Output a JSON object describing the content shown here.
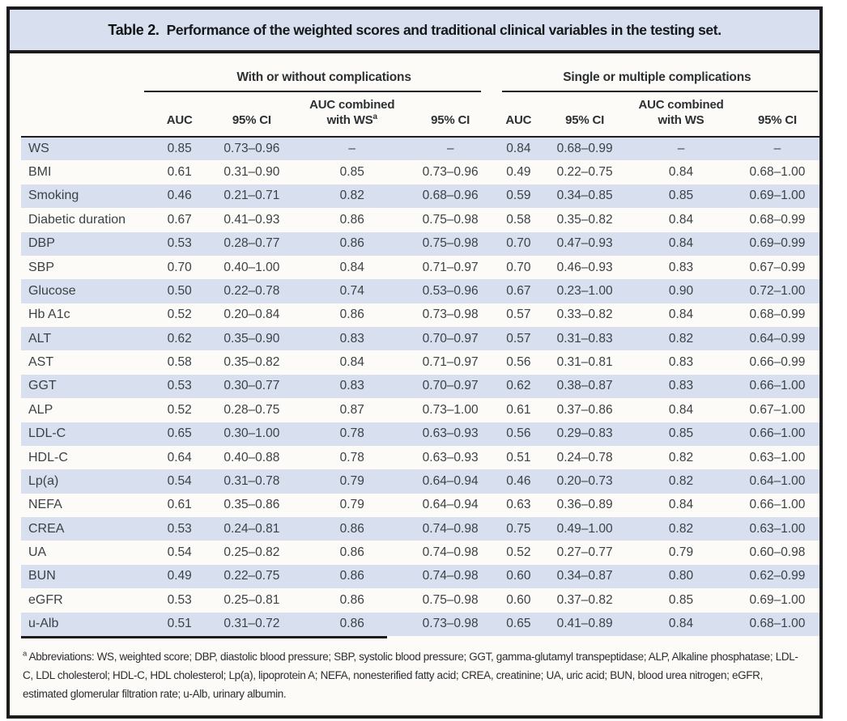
{
  "title": {
    "label": "Table 2.",
    "text": "Performance of the weighted scores and traditional clinical variables in the testing set."
  },
  "colors": {
    "band_blue": "#d8e0f0",
    "row_offwhite": "#fcfbf8",
    "border_black": "#1b1b1b",
    "text_dark": "#3c4145"
  },
  "table": {
    "group_headers": [
      {
        "label": "With or without complications"
      },
      {
        "label": "Single or multiple complications"
      }
    ],
    "sub_headers": [
      {
        "text": "AUC"
      },
      {
        "text": "95% CI"
      },
      {
        "line1": "AUC combined",
        "line2": "with WS",
        "sup": "a"
      },
      {
        "text": "95% CI"
      },
      {
        "text": "AUC"
      },
      {
        "text": "95% CI"
      },
      {
        "line1": "AUC combined",
        "line2": "with WS",
        "sup": ""
      },
      {
        "text": "95% CI"
      }
    ],
    "rows": [
      {
        "label": "WS",
        "values": [
          "0.85",
          "0.73–0.96",
          "–",
          "–",
          "0.84",
          "0.68–0.99",
          "–",
          "–"
        ]
      },
      {
        "label": "BMI",
        "values": [
          "0.61",
          "0.31–0.90",
          "0.85",
          "0.73–0.96",
          "0.49",
          "0.22–0.75",
          "0.84",
          "0.68–1.00"
        ]
      },
      {
        "label": "Smoking",
        "values": [
          "0.46",
          "0.21–0.71",
          "0.82",
          "0.68–0.96",
          "0.59",
          "0.34–0.85",
          "0.85",
          "0.69–1.00"
        ]
      },
      {
        "label": "Diabetic duration",
        "values": [
          "0.67",
          "0.41–0.93",
          "0.86",
          "0.75–0.98",
          "0.58",
          "0.35–0.82",
          "0.84",
          "0.68–0.99"
        ]
      },
      {
        "label": "DBP",
        "values": [
          "0.53",
          "0.28–0.77",
          "0.86",
          "0.75–0.98",
          "0.70",
          "0.47–0.93",
          "0.84",
          "0.69–0.99"
        ]
      },
      {
        "label": "SBP",
        "values": [
          "0.70",
          "0.40–1.00",
          "0.84",
          "0.71–0.97",
          "0.70",
          "0.46–0.93",
          "0.83",
          "0.67–0.99"
        ]
      },
      {
        "label": "Glucose",
        "values": [
          "0.50",
          "0.22–0.78",
          "0.74",
          "0.53–0.96",
          "0.67",
          "0.23–1.00",
          "0.90",
          "0.72–1.00"
        ]
      },
      {
        "label": "Hb A1c",
        "values": [
          "0.52",
          "0.20–0.84",
          "0.86",
          "0.73–0.98",
          "0.57",
          "0.33–0.82",
          "0.84",
          "0.68–0.99"
        ]
      },
      {
        "label": "ALT",
        "values": [
          "0.62",
          "0.35–0.90",
          "0.83",
          "0.70–0.97",
          "0.57",
          "0.31–0.83",
          "0.82",
          "0.64–0.99"
        ]
      },
      {
        "label": "AST",
        "values": [
          "0.58",
          "0.35–0.82",
          "0.84",
          "0.71–0.97",
          "0.56",
          "0.31–0.81",
          "0.83",
          "0.66–0.99"
        ]
      },
      {
        "label": "GGT",
        "values": [
          "0.53",
          "0.30–0.77",
          "0.83",
          "0.70–0.97",
          "0.62",
          "0.38–0.87",
          "0.83",
          "0.66–1.00"
        ]
      },
      {
        "label": "ALP",
        "values": [
          "0.52",
          "0.28–0.75",
          "0.87",
          "0.73–1.00",
          "0.61",
          "0.37–0.86",
          "0.84",
          "0.67–1.00"
        ]
      },
      {
        "label": "LDL-C",
        "values": [
          "0.65",
          "0.30–1.00",
          "0.78",
          "0.63–0.93",
          "0.56",
          "0.29–0.83",
          "0.85",
          "0.66–1.00"
        ]
      },
      {
        "label": "HDL-C",
        "values": [
          "0.64",
          "0.40–0.88",
          "0.78",
          "0.63–0.93",
          "0.51",
          "0.24–0.78",
          "0.82",
          "0.63–1.00"
        ]
      },
      {
        "label": "Lp(a)",
        "values": [
          "0.54",
          "0.31–0.78",
          "0.79",
          "0.64–0.94",
          "0.46",
          "0.20–0.73",
          "0.82",
          "0.64–1.00"
        ]
      },
      {
        "label": "NEFA",
        "values": [
          "0.61",
          "0.35–0.86",
          "0.79",
          "0.64–0.94",
          "0.63",
          "0.36–0.89",
          "0.84",
          "0.66–1.00"
        ]
      },
      {
        "label": "CREA",
        "values": [
          "0.53",
          "0.24–0.81",
          "0.86",
          "0.74–0.98",
          "0.75",
          "0.49–1.00",
          "0.82",
          "0.63–1.00"
        ]
      },
      {
        "label": "UA",
        "values": [
          "0.54",
          "0.25–0.82",
          "0.86",
          "0.74–0.98",
          "0.52",
          "0.27–0.77",
          "0.79",
          "0.60–0.98"
        ]
      },
      {
        "label": "BUN",
        "values": [
          "0.49",
          "0.22–0.75",
          "0.86",
          "0.74–0.98",
          "0.60",
          "0.34–0.87",
          "0.80",
          "0.62–0.99"
        ]
      },
      {
        "label": "eGFR",
        "values": [
          "0.53",
          "0.25–0.81",
          "0.86",
          "0.75–0.98",
          "0.60",
          "0.37–0.82",
          "0.85",
          "0.69–1.00"
        ]
      },
      {
        "label": "u-Alb",
        "values": [
          "0.51",
          "0.31–0.72",
          "0.86",
          "0.73–0.98",
          "0.65",
          "0.41–0.89",
          "0.84",
          "0.68–1.00"
        ]
      }
    ]
  },
  "footnote": {
    "sup": "a",
    "text": "Abbreviations: WS, weighted score; DBP, diastolic blood pressure; SBP, systolic blood pressure; GGT, gamma-glutamyl transpeptidase; ALP, Alkaline phosphatase; LDL-C, LDL cholesterol; HDL-C, HDL cholesterol; Lp(a), lipoprotein A; NEFA, nonesterified fatty acid; CREA, creatinine; UA, uric acid; BUN, blood urea nitrogen; eGFR, estimated glomerular filtration rate; u-Alb, urinary albumin."
  }
}
